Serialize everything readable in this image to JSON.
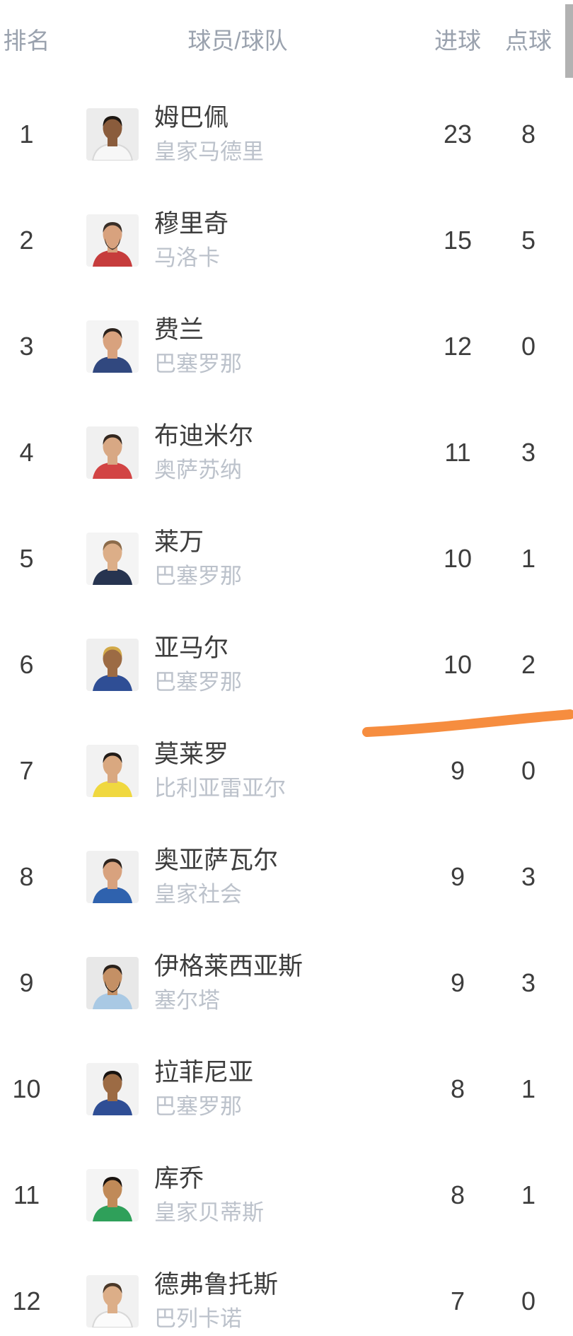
{
  "table": {
    "headers": {
      "rank": "排名",
      "player": "球员/球队",
      "goals": "进球",
      "penalties": "点球"
    },
    "rows": [
      {
        "rank": "1",
        "name": "姆巴佩",
        "team": "皇家马德里",
        "goals": "23",
        "penalties": "8",
        "avatar": {
          "bg": "#ececec",
          "skin": "#8a5c3c",
          "hair": "#1d1712",
          "jersey": "#f7f7f7",
          "jersey_stroke": "#d8d8d8"
        }
      },
      {
        "rank": "2",
        "name": "穆里奇",
        "team": "马洛卡",
        "goals": "15",
        "penalties": "5",
        "avatar": {
          "bg": "#f2f2f2",
          "skin": "#d8a27e",
          "hair": "#3a2f28",
          "beard": "#4a3b30",
          "jersey": "#c63c3c"
        }
      },
      {
        "rank": "3",
        "name": "费兰",
        "team": "巴塞罗那",
        "goals": "12",
        "penalties": "0",
        "avatar": {
          "bg": "#f4f4f4",
          "skin": "#d8a27e",
          "hair": "#2a211b",
          "jersey": "#31487f"
        }
      },
      {
        "rank": "4",
        "name": "布迪米尔",
        "team": "奥萨苏纳",
        "goals": "11",
        "penalties": "3",
        "avatar": {
          "bg": "#f0f0f0",
          "skin": "#d8a884",
          "hair": "#33271f",
          "jersey": "#d24444"
        }
      },
      {
        "rank": "5",
        "name": "莱万",
        "team": "巴塞罗那",
        "goals": "10",
        "penalties": "1",
        "avatar": {
          "bg": "#f4f4f4",
          "skin": "#dcae88",
          "hair": "#8c6b4a",
          "jersey": "#273450"
        }
      },
      {
        "rank": "6",
        "name": "亚马尔",
        "team": "巴塞罗那",
        "goals": "10",
        "penalties": "2",
        "avatar": {
          "bg": "#efefef",
          "skin": "#9c6b44",
          "hair": "#d2a948",
          "jersey": "#2f4e95"
        }
      },
      {
        "rank": "7",
        "name": "莫莱罗",
        "team": "比利亚雷亚尔",
        "goals": "9",
        "penalties": "0",
        "avatar": {
          "bg": "#f2f2f2",
          "skin": "#d9a880",
          "hair": "#221c18",
          "jersey": "#f0d83f"
        }
      },
      {
        "rank": "8",
        "name": "奥亚萨瓦尔",
        "team": "皇家社会",
        "goals": "9",
        "penalties": "3",
        "avatar": {
          "bg": "#f0f0f0",
          "skin": "#d8a27e",
          "hair": "#2c231d",
          "jersey": "#2f62ae"
        }
      },
      {
        "rank": "9",
        "name": "伊格莱西亚斯",
        "team": "塞尔塔",
        "goals": "9",
        "penalties": "3",
        "avatar": {
          "bg": "#e8e8e8",
          "skin": "#c49065",
          "hair": "#2a211b",
          "beard": "#241c16",
          "jersey": "#a9c9e4"
        }
      },
      {
        "rank": "10",
        "name": "拉菲尼亚",
        "team": "巴塞罗那",
        "goals": "8",
        "penalties": "1",
        "avatar": {
          "bg": "#f2f2f2",
          "skin": "#9c6b44",
          "hair": "#171310",
          "jersey": "#2f4e95"
        }
      },
      {
        "rank": "11",
        "name": "库乔",
        "team": "皇家贝蒂斯",
        "goals": "8",
        "penalties": "1",
        "avatar": {
          "bg": "#f4f4f4",
          "skin": "#c08a58",
          "hair": "#18120e",
          "jersey": "#2fa05a"
        }
      },
      {
        "rank": "12",
        "name": "德弗鲁托斯",
        "team": "巴列卡诺",
        "goals": "7",
        "penalties": "0",
        "avatar": {
          "bg": "#f1f1f1",
          "skin": "#dcae88",
          "hair": "#4a3828",
          "jersey": "#fbfbfb",
          "jersey_stroke": "#d8d8d8"
        }
      }
    ]
  },
  "annotation": {
    "type": "hand-drawn-underline",
    "color": "#F68D3F"
  },
  "ui": {
    "scrollbar_color": "#b2b2b2",
    "header_text_color": "#9aa2ae",
    "text_color": "#3d3d3d",
    "team_text_color": "#bcc2cb"
  }
}
